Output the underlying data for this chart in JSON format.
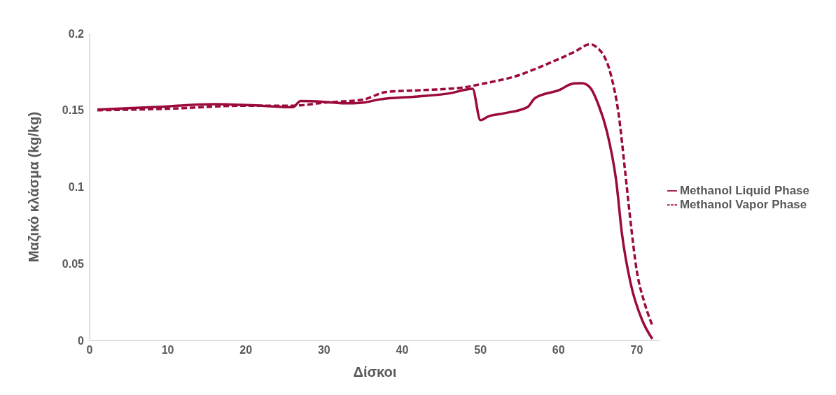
{
  "chart_data": {
    "type": "line",
    "xlabel": "Δίσκοι",
    "ylabel": "Μαζικό κλάσμα (kg/kg)",
    "xlim": [
      0,
      73
    ],
    "xticks": [
      0,
      10,
      20,
      30,
      40,
      50,
      60,
      70
    ],
    "ylim": [
      0,
      0.2
    ],
    "yticks": [
      0,
      0.05,
      0.1,
      0.15,
      0.2
    ],
    "grid": false,
    "legend": "right",
    "marker": "none",
    "series": [
      {
        "name": "Methanol Liquid Phase",
        "color": "#9b0a3b",
        "line_style": "solid",
        "x": [
          1,
          8,
          16,
          22,
          26,
          27,
          30,
          33,
          35,
          37,
          42,
          46,
          49,
          50,
          51,
          53,
          56,
          57,
          60,
          62,
          63,
          64,
          65,
          66.2,
          67.4,
          68.1,
          69.2,
          70.7,
          72
        ],
        "values": [
          0.1505,
          0.152,
          0.154,
          0.153,
          0.152,
          0.156,
          0.1555,
          0.1545,
          0.155,
          0.157,
          0.159,
          0.161,
          0.164,
          0.1436,
          0.146,
          0.148,
          0.152,
          0.158,
          0.163,
          0.1675,
          0.1676,
          0.165,
          0.155,
          0.1358,
          0.103,
          0.07,
          0.0377,
          0.0132,
          0.001
        ]
      },
      {
        "name": "Methanol Vapor Phase",
        "color": "#9b0a3b",
        "line_style": "dashed",
        "x": [
          1,
          10,
          20,
          26,
          30,
          35,
          38,
          42,
          48,
          50,
          55,
          58,
          62,
          64,
          64.9,
          66.7,
          67.7,
          68.5,
          69.2,
          70,
          71,
          72
        ],
        "values": [
          0.15,
          0.151,
          0.153,
          0.153,
          0.155,
          0.157,
          0.162,
          0.163,
          0.165,
          0.167,
          0.173,
          0.179,
          0.188,
          0.193,
          0.191,
          0.173,
          0.147,
          0.111,
          0.078,
          0.0456,
          0.0245,
          0.0098
        ]
      }
    ]
  }
}
